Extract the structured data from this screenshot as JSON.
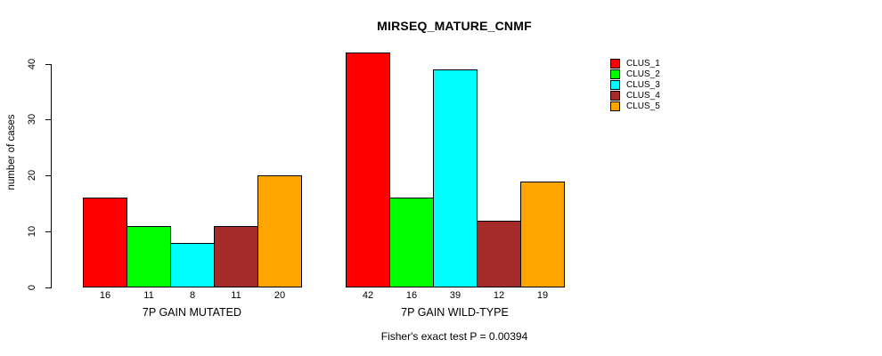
{
  "title": "MIRSEQ_MATURE_CNMF",
  "footer": "Fisher's exact test P = 0.00394",
  "chart_data": {
    "type": "bar",
    "title": "MIRSEQ_MATURE_CNMF",
    "ylabel": "number of cases",
    "xlabel": "",
    "ylim": [
      0,
      40
    ],
    "yticks": [
      0,
      10,
      20,
      30,
      40
    ],
    "grid": false,
    "legend_position": "right",
    "bar_value_labels": true,
    "groups": [
      {
        "label": "7P GAIN MUTATED",
        "values": [
          16,
          11,
          8,
          11,
          20
        ]
      },
      {
        "label": "7P GAIN WILD-TYPE",
        "values": [
          42,
          16,
          39,
          12,
          19
        ]
      }
    ],
    "series": [
      {
        "name": "CLUS_1",
        "color": "#FF0000"
      },
      {
        "name": "CLUS_2",
        "color": "#00FF00"
      },
      {
        "name": "CLUS_3",
        "color": "#00FFFF"
      },
      {
        "name": "CLUS_4",
        "color": "#A52A2A"
      },
      {
        "name": "CLUS_5",
        "color": "#FFA500"
      }
    ],
    "annotation": "Fisher's exact test P = 0.00394"
  }
}
